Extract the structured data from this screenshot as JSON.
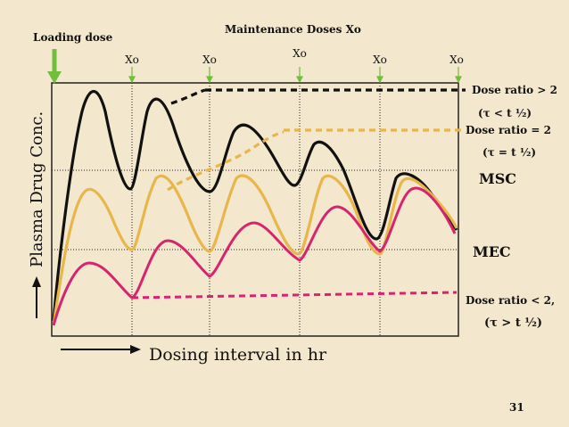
{
  "slide": {
    "loading_dose_label": "Loading dose",
    "maintenance_title": "Maintenance Doses Xo",
    "dose_marks": [
      "Xo",
      "Xo",
      "Xo",
      "Xo",
      "Xo"
    ],
    "y_axis_label": "Plasma Drug Conc.",
    "x_axis_label": "Dosing interval in hr",
    "page_number": "31",
    "labels": {
      "ratio_gt": "Dose ratio > 2",
      "ratio_gt_cond": "(τ  < t ½)",
      "ratio_eq": "Dose ratio = 2",
      "ratio_eq_cond": "(τ  = t ½)",
      "msc": "MSC",
      "mec": "MEC",
      "ratio_lt": "Dose ratio < 2,",
      "ratio_lt_cond": "(τ  > t ½)"
    },
    "colors": {
      "background": "#f3e7cd",
      "black_curve": "#111111",
      "yellow_curve": "#e8b64a",
      "pink_curve": "#d5256e",
      "marker_green": "#6fbf3a",
      "axis": "#222222"
    }
  }
}
